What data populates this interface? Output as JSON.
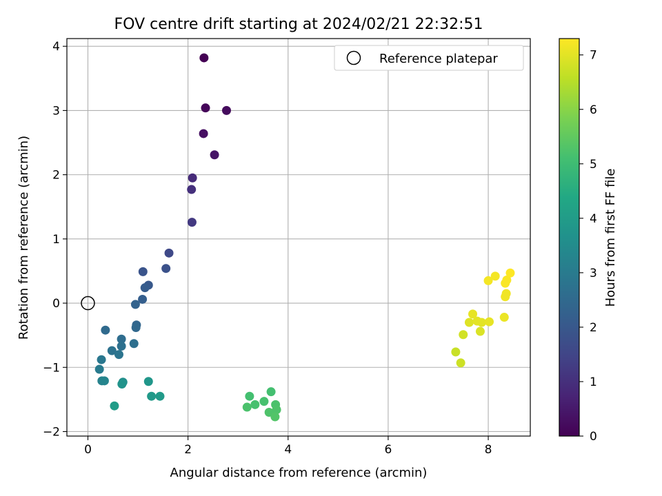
{
  "chart_data": {
    "type": "scatter",
    "title": "FOV centre drift starting at 2024/02/21 22:32:51",
    "xlabel": "Angular distance from reference (arcmin)",
    "ylabel": "Rotation from reference (arcmin)",
    "xlim": [
      -0.42,
      8.84
    ],
    "ylim": [
      -2.07,
      4.12
    ],
    "xticks": [
      0,
      2,
      4,
      6,
      8
    ],
    "yticks": [
      -2,
      -1,
      0,
      1,
      2,
      3,
      4
    ],
    "grid": true,
    "legend": {
      "placement": "top-right",
      "entries": [
        "Reference platepar"
      ]
    },
    "reference": {
      "x": 0,
      "y": 0
    },
    "colorbar": {
      "label": "Hours from first FF file",
      "colormap": "viridis",
      "range": [
        0,
        7.3
      ],
      "ticks": [
        0,
        1,
        2,
        3,
        4,
        5,
        6,
        7
      ]
    },
    "points": [
      {
        "x": 2.32,
        "y": 3.82,
        "c": 0.0
      },
      {
        "x": 2.35,
        "y": 3.04,
        "c": 0.1
      },
      {
        "x": 2.77,
        "y": 3.0,
        "c": 0.2
      },
      {
        "x": 2.31,
        "y": 2.64,
        "c": 0.3
      },
      {
        "x": 2.53,
        "y": 2.31,
        "c": 0.4
      },
      {
        "x": 2.09,
        "y": 1.95,
        "c": 0.9
      },
      {
        "x": 2.07,
        "y": 1.77,
        "c": 1.0
      },
      {
        "x": 2.08,
        "y": 1.26,
        "c": 1.2
      },
      {
        "x": 1.62,
        "y": 0.78,
        "c": 1.6
      },
      {
        "x": 1.56,
        "y": 0.54,
        "c": 1.8
      },
      {
        "x": 1.1,
        "y": 0.49,
        "c": 1.9
      },
      {
        "x": 1.21,
        "y": 0.28,
        "c": 2.0
      },
      {
        "x": 1.14,
        "y": 0.24,
        "c": 2.1
      },
      {
        "x": 1.09,
        "y": 0.06,
        "c": 2.2
      },
      {
        "x": 0.95,
        "y": -0.02,
        "c": 2.3
      },
      {
        "x": 0.97,
        "y": -0.34,
        "c": 2.4
      },
      {
        "x": 0.96,
        "y": -0.38,
        "c": 2.45
      },
      {
        "x": 0.35,
        "y": -0.42,
        "c": 2.5
      },
      {
        "x": 0.67,
        "y": -0.56,
        "c": 2.6
      },
      {
        "x": 0.92,
        "y": -0.63,
        "c": 2.65
      },
      {
        "x": 0.67,
        "y": -0.67,
        "c": 2.7
      },
      {
        "x": 0.48,
        "y": -0.74,
        "c": 2.75
      },
      {
        "x": 0.62,
        "y": -0.8,
        "c": 2.8
      },
      {
        "x": 0.27,
        "y": -0.88,
        "c": 2.9
      },
      {
        "x": 0.23,
        "y": -1.03,
        "c": 3.0
      },
      {
        "x": 0.28,
        "y": -1.21,
        "c": 3.2
      },
      {
        "x": 0.33,
        "y": -1.21,
        "c": 3.3
      },
      {
        "x": 0.7,
        "y": -1.23,
        "c": 3.6
      },
      {
        "x": 0.68,
        "y": -1.26,
        "c": 3.7
      },
      {
        "x": 1.21,
        "y": -1.22,
        "c": 3.8
      },
      {
        "x": 1.27,
        "y": -1.45,
        "c": 3.9
      },
      {
        "x": 1.44,
        "y": -1.45,
        "c": 3.95
      },
      {
        "x": 0.53,
        "y": -1.6,
        "c": 4.0
      },
      {
        "x": 3.66,
        "y": -1.38,
        "c": 5.1
      },
      {
        "x": 3.23,
        "y": -1.45,
        "c": 5.1
      },
      {
        "x": 3.52,
        "y": -1.53,
        "c": 5.15
      },
      {
        "x": 3.34,
        "y": -1.58,
        "c": 5.15
      },
      {
        "x": 3.75,
        "y": -1.58,
        "c": 5.2
      },
      {
        "x": 3.18,
        "y": -1.62,
        "c": 5.2
      },
      {
        "x": 3.77,
        "y": -1.66,
        "c": 5.25
      },
      {
        "x": 3.62,
        "y": -1.7,
        "c": 5.25
      },
      {
        "x": 3.74,
        "y": -1.77,
        "c": 5.3
      },
      {
        "x": 7.35,
        "y": -0.76,
        "c": 6.7
      },
      {
        "x": 7.45,
        "y": -0.93,
        "c": 6.75
      },
      {
        "x": 7.5,
        "y": -0.49,
        "c": 6.8
      },
      {
        "x": 7.84,
        "y": -0.44,
        "c": 6.9
      },
      {
        "x": 7.62,
        "y": -0.3,
        "c": 6.95
      },
      {
        "x": 7.78,
        "y": -0.28,
        "c": 7.0
      },
      {
        "x": 7.87,
        "y": -0.3,
        "c": 7.0
      },
      {
        "x": 8.02,
        "y": -0.29,
        "c": 7.05
      },
      {
        "x": 7.69,
        "y": -0.17,
        "c": 7.05
      },
      {
        "x": 8.32,
        "y": -0.22,
        "c": 7.1
      },
      {
        "x": 8.34,
        "y": 0.1,
        "c": 7.15
      },
      {
        "x": 8.36,
        "y": 0.15,
        "c": 7.15
      },
      {
        "x": 8.0,
        "y": 0.35,
        "c": 7.2
      },
      {
        "x": 8.14,
        "y": 0.42,
        "c": 7.2
      },
      {
        "x": 8.34,
        "y": 0.31,
        "c": 7.25
      },
      {
        "x": 8.37,
        "y": 0.36,
        "c": 7.25
      },
      {
        "x": 8.44,
        "y": 0.47,
        "c": 7.3
      }
    ]
  }
}
